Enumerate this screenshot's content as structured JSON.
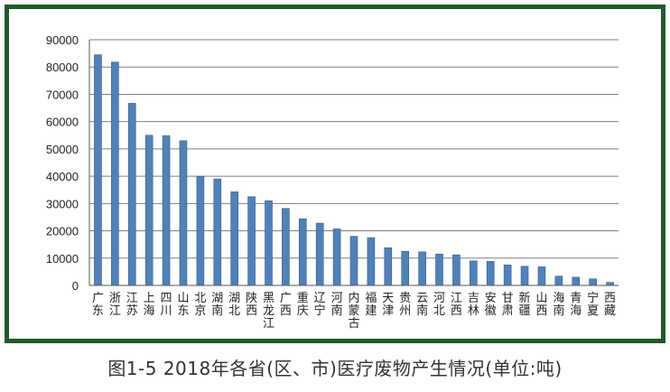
{
  "caption": "图1-5  2018年各省(区、市)医疗废物产生情况(单位:吨)",
  "colors": {
    "frame": "#1f5a2a",
    "bar": "#4f81bd",
    "bar_edge": "#385d8a",
    "grid": "#7f7f7f"
  },
  "chart_data": {
    "type": "bar",
    "title": "",
    "xlabel": "",
    "ylabel": "",
    "ylim": [
      0,
      90000
    ],
    "yticks": [
      0,
      10000,
      20000,
      30000,
      40000,
      50000,
      60000,
      70000,
      80000,
      90000
    ],
    "grid": true,
    "legend": "none",
    "categories": [
      "广东",
      "浙江",
      "江苏",
      "上海",
      "四川",
      "山东",
      "北京",
      "湖南",
      "湖北",
      "陕西",
      "黑龙江",
      "广西",
      "重庆",
      "辽宁",
      "河南",
      "内蒙古",
      "福建",
      "天津",
      "贵州",
      "云南",
      "河北",
      "江西",
      "吉林",
      "安徽",
      "甘肃",
      "新疆",
      "山西",
      "海南",
      "青海",
      "宁夏",
      "西藏"
    ],
    "values": [
      84500,
      81800,
      66700,
      55000,
      54900,
      53000,
      40000,
      39000,
      34300,
      32500,
      31000,
      28200,
      24400,
      22800,
      20700,
      18000,
      17500,
      13800,
      12500,
      12300,
      11500,
      11200,
      9000,
      8800,
      7500,
      7000,
      6800,
      3400,
      3000,
      2400,
      1100
    ]
  }
}
